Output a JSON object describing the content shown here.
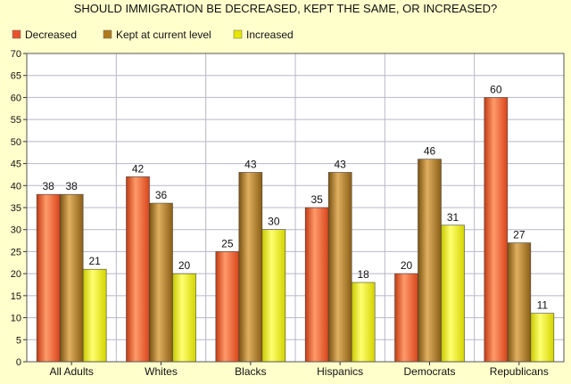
{
  "chart_data": {
    "type": "bar",
    "title": "SHOULD IMMIGRATION BE DECREASED, KEPT THE SAME, OR INCREASED?",
    "categories": [
      "All Adults",
      "Whites",
      "Blacks",
      "Hispanics",
      "Democrats",
      "Republicans"
    ],
    "series": [
      {
        "name": "Decreased",
        "values": [
          38,
          42,
          25,
          35,
          20,
          60
        ],
        "color": "#e8522a"
      },
      {
        "name": "Kept at current level",
        "values": [
          38,
          36,
          43,
          43,
          46,
          27
        ],
        "color": "#b07a1c"
      },
      {
        "name": "Increased",
        "values": [
          21,
          20,
          30,
          18,
          31,
          11
        ],
        "color": "#e6e600"
      }
    ],
    "ylim": [
      0,
      70
    ],
    "ytick_step": 5,
    "grid": true,
    "legend_position": "top-left",
    "colors": {
      "background": "#ffffcc",
      "plot_background": "#ffffff",
      "grid": "#b8b8c8"
    }
  }
}
